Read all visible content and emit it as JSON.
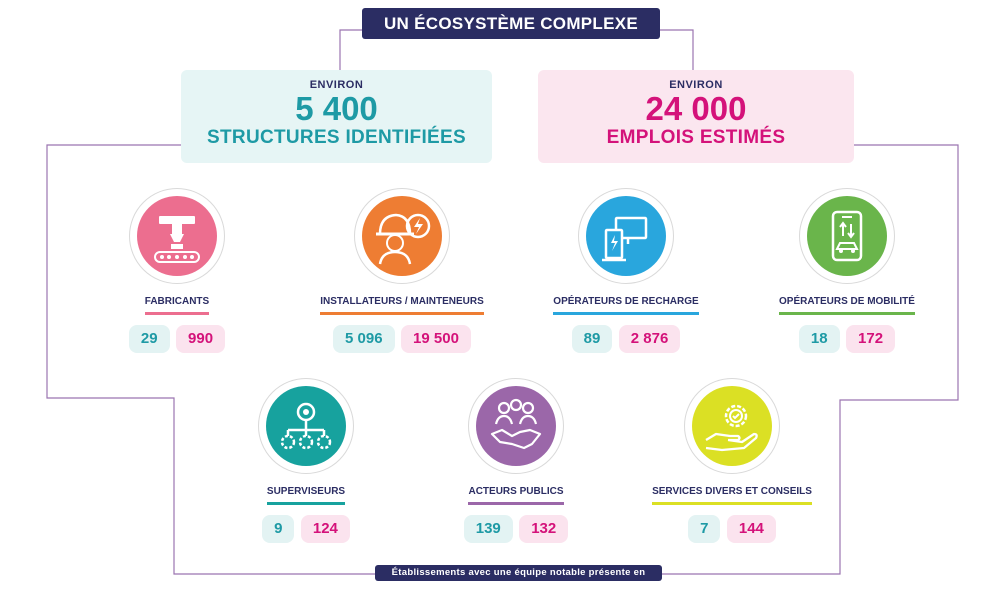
{
  "title": "UN ÉCOSYSTÈME COMPLEXE",
  "footnote": "Établissements avec une équipe notable présente en France",
  "stats": {
    "structures": {
      "label": "ENVIRON",
      "value": "5 400",
      "caption": "STRUCTURES IDENTIFIÉES",
      "color": "#1e9aa5"
    },
    "emplois": {
      "label": "ENVIRON",
      "value": "24 000",
      "caption": "EMPLOIS ESTIMÉS",
      "color": "#d4127a"
    }
  },
  "categories": [
    {
      "name": "FABRICANTS",
      "icon": "factory-robot-arm-icon",
      "color": "#ec6e8f",
      "structures": "29",
      "emplois": "990"
    },
    {
      "name": "INSTALLATEURS / MAINTENEURS",
      "icon": "worker-helmet-icon",
      "color": "#ee7d33",
      "structures": "5 096",
      "emplois": "19 500"
    },
    {
      "name": "OPÉRATEURS DE RECHARGE",
      "icon": "charging-station-icon",
      "color": "#29a6dd",
      "structures": "89",
      "emplois": "2 876"
    },
    {
      "name": "OPÉRATEURS DE MOBILITÉ",
      "icon": "smartphone-car-icon",
      "color": "#6ab54b",
      "structures": "18",
      "emplois": "172"
    },
    {
      "name": "SUPERVISEURS",
      "icon": "network-hierarchy-icon",
      "color": "#17a29e",
      "structures": "9",
      "emplois": "124"
    },
    {
      "name": "ACTEURS PUBLICS",
      "icon": "handshake-people-icon",
      "color": "#9b67a9",
      "structures": "139",
      "emplois": "132"
    },
    {
      "name": "SERVICES DIVERS ET CONSEILS",
      "icon": "hand-gear-icon",
      "color": "#dbe024",
      "structures": "7",
      "emplois": "144"
    }
  ]
}
